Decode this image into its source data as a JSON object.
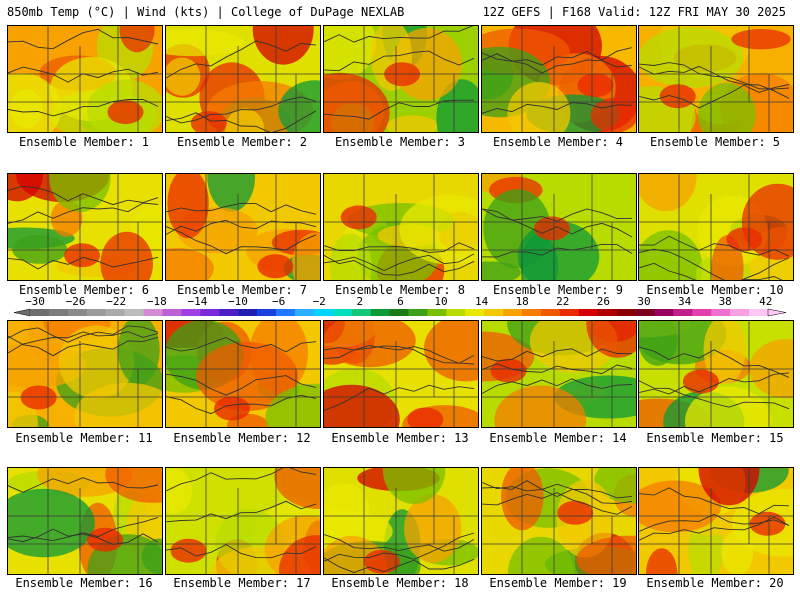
{
  "header": {
    "left": "850mb Temp (°C) | Wind (kts) | College of DuPage NEXLAB",
    "right": "12Z GEFS | F168 Valid: 12Z FRI MAY 30 2025"
  },
  "colorbar": {
    "labels": [
      "−30",
      "−26",
      "−22",
      "−18",
      "−14",
      "−10",
      "−6",
      "−2",
      "2",
      "6",
      "10",
      "14",
      "18",
      "22",
      "26",
      "30",
      "34",
      "38",
      "42"
    ],
    "colors": [
      "#6e6e6e",
      "#7c7c7c",
      "#8a8a8a",
      "#9a9a9a",
      "#aaaaaa",
      "#bcbcbc",
      "#d58bd5",
      "#c060d8",
      "#a040e0",
      "#7a2ad8",
      "#4b1ec8",
      "#2020b0",
      "#1a40e0",
      "#1f77ff",
      "#2bb0ff",
      "#00d4ff",
      "#00e0c0",
      "#12c878",
      "#0e9a38",
      "#1a7a18",
      "#3ca018",
      "#78c000",
      "#b8dc00",
      "#e8e800",
      "#f2c800",
      "#f7a200",
      "#f57c00",
      "#ef5a00",
      "#e82c00",
      "#d40000",
      "#b00000",
      "#8a0000",
      "#7a0020",
      "#9a0060",
      "#c0208a",
      "#e040b0",
      "#f070d0",
      "#f8a0e4",
      "#ffc8f4"
    ]
  },
  "panels": [
    {
      "label": "Ensemble Member: 1",
      "base": "#f7a200"
    },
    {
      "label": "Ensemble Member: 2",
      "base": "#e0e000"
    },
    {
      "label": "Ensemble Member: 3",
      "base": "#9cd000"
    },
    {
      "label": "Ensemble Member: 4",
      "base": "#f7b800"
    },
    {
      "label": "Ensemble Member: 5",
      "base": "#f7b000"
    },
    {
      "label": "Ensemble Member: 6",
      "base": "#e8e000"
    },
    {
      "label": "Ensemble Member: 7",
      "base": "#f2c800"
    },
    {
      "label": "Ensemble Member: 8",
      "base": "#e8d800"
    },
    {
      "label": "Ensemble Member: 9",
      "base": "#b8dc00"
    },
    {
      "label": "Ensemble Member: 10",
      "base": "#e0e000"
    },
    {
      "label": "Ensemble Member: 11",
      "base": "#f7b000"
    },
    {
      "label": "Ensemble Member: 12",
      "base": "#f2c800"
    },
    {
      "label": "Ensemble Member: 13",
      "base": "#e8e000"
    },
    {
      "label": "Ensemble Member: 14",
      "base": "#b8dc00"
    },
    {
      "label": "Ensemble Member: 15",
      "base": "#c8e000"
    },
    {
      "label": "Ensemble Member: 16",
      "base": "#e8e000"
    },
    {
      "label": "Ensemble Member: 17",
      "base": "#d0e000"
    },
    {
      "label": "Ensemble Member: 18",
      "base": "#e0e000"
    },
    {
      "label": "Ensemble Member: 19",
      "base": "#e8d800"
    },
    {
      "label": "Ensemble Member: 20",
      "base": "#f2c800"
    }
  ]
}
